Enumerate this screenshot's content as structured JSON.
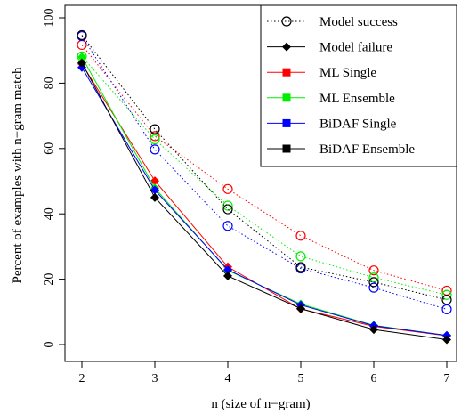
{
  "chart_data": {
    "type": "line",
    "x": [
      2,
      3,
      4,
      5,
      6,
      7
    ],
    "xlabel": "n (size of n−gram)",
    "ylabel": "Percent of examples with n−gram match",
    "xlim": [
      2,
      7
    ],
    "ylim": [
      0,
      100
    ],
    "x_ticks": [
      "2",
      "3",
      "4",
      "5",
      "6",
      "7"
    ],
    "y_ticks": [
      "0",
      "20",
      "40",
      "60",
      "80",
      "100"
    ],
    "grid": false,
    "legend_position": "top-right",
    "legend": [
      {
        "label": "Model success",
        "style": "dotted-open-circle",
        "color": "#000000"
      },
      {
        "label": "Model failure",
        "style": "solid-diamond",
        "color": "#000000"
      },
      {
        "label": "ML Single",
        "style": "square",
        "color": "#ff0000"
      },
      {
        "label": "ML Ensemble",
        "style": "square",
        "color": "#00ee00"
      },
      {
        "label": "BiDAF Single",
        "style": "square",
        "color": "#0000ff"
      },
      {
        "label": "BiDAF Ensemble",
        "style": "square",
        "color": "#000000"
      }
    ],
    "series": [
      {
        "model": "ML Single",
        "outcome": "success",
        "color": "#ff0000",
        "values": [
          91.7,
          63.8,
          47.6,
          33.3,
          22.7,
          16.5
        ]
      },
      {
        "model": "ML Ensemble",
        "outcome": "success",
        "color": "#00ee00",
        "values": [
          88.2,
          62.8,
          42.5,
          27.0,
          20.5,
          15.2
        ]
      },
      {
        "model": "BiDAF Single",
        "outcome": "success",
        "color": "#0000ff",
        "values": [
          94.4,
          59.7,
          36.3,
          23.3,
          17.4,
          10.8
        ]
      },
      {
        "model": "BiDAF Ensemble",
        "outcome": "success",
        "color": "#000000",
        "values": [
          94.7,
          65.9,
          41.4,
          23.7,
          19.1,
          13.7
        ]
      },
      {
        "model": "ML Single",
        "outcome": "failure",
        "color": "#ff0000",
        "values": [
          85.9,
          50.1,
          23.8,
          10.9,
          5.6,
          2.7
        ]
      },
      {
        "model": "ML Ensemble",
        "outcome": "failure",
        "color": "#00ee00",
        "values": [
          88.0,
          47.9,
          22.7,
          12.4,
          5.9,
          2.8
        ]
      },
      {
        "model": "BiDAF Single",
        "outcome": "failure",
        "color": "#0000ff",
        "values": [
          84.8,
          47.3,
          22.9,
          12.1,
          5.8,
          2.8
        ]
      },
      {
        "model": "BiDAF Ensemble",
        "outcome": "failure",
        "color": "#000000",
        "values": [
          86.2,
          45.0,
          21.0,
          11.0,
          4.6,
          1.5
        ]
      }
    ]
  }
}
